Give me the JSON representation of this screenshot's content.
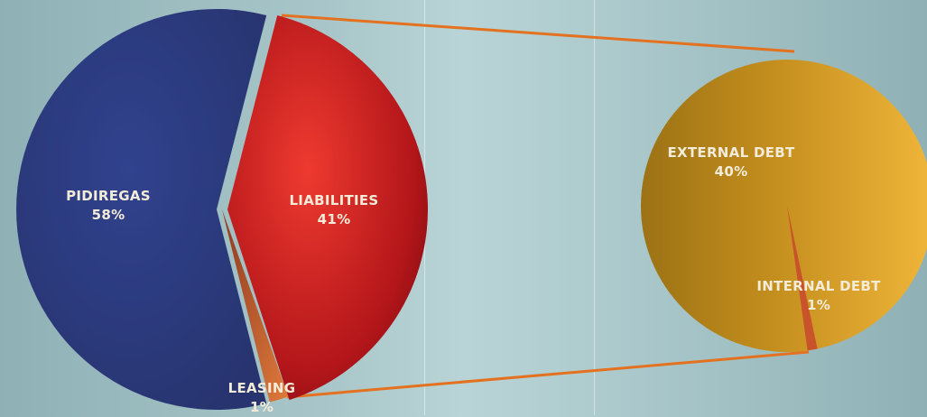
{
  "chart_data": [
    {
      "type": "pie",
      "slices": [
        {
          "label": "PIDIREGAS",
          "value": 58,
          "value_label": "58%",
          "color": "#2e3f84"
        },
        {
          "label": "LIABILITIES",
          "value": 41,
          "value_label": "41%",
          "color": "#c8201d"
        },
        {
          "label": "LEASING",
          "value": 1,
          "value_label": "1%",
          "color": "#6e2a1c"
        }
      ],
      "exploded": "LIABILITIES"
    },
    {
      "type": "pie",
      "breakdown_of": "LIABILITIES",
      "slices": [
        {
          "label": "EXTERNAL DEBT",
          "value": 40,
          "value_label": "40%",
          "color": "#d9a22a"
        },
        {
          "label": "INTERNAL DEBT",
          "value": 1,
          "value_label": "1%",
          "color": "#c9532a"
        }
      ]
    }
  ],
  "colors": {
    "connector": "#e4711f",
    "label_text": "#f3ecd9"
  }
}
